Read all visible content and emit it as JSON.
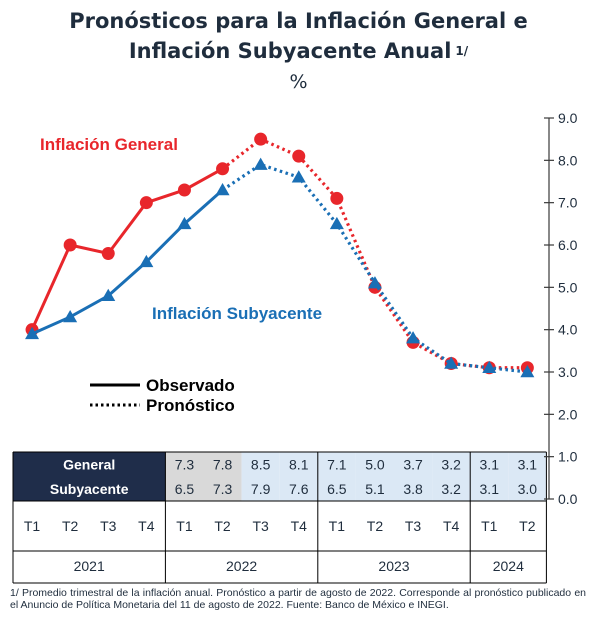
{
  "title": {
    "line1": "Pronósticos para la Inflación General e",
    "line2": "Inflación Subyacente Anual",
    "superscript": "1/",
    "units": "%"
  },
  "chart_data": {
    "type": "line",
    "title": "Pronósticos para la Inflación General e Inflación Subyacente Anual 1/",
    "ylabel": "%",
    "ylim": [
      0.0,
      9.0
    ],
    "yticks": [
      "0.0",
      "1.0",
      "2.0",
      "3.0",
      "4.0",
      "5.0",
      "6.0",
      "7.0",
      "8.0",
      "9.0"
    ],
    "categories": [
      "T1",
      "T2",
      "T3",
      "T4",
      "T1",
      "T2",
      "T3",
      "T4",
      "T1",
      "T2",
      "T3",
      "T4",
      "T1",
      "T2"
    ],
    "years": [
      {
        "label": "2021",
        "span": 4
      },
      {
        "label": "2022",
        "span": 4
      },
      {
        "label": "2023",
        "span": 4
      },
      {
        "label": "2024",
        "span": 2
      }
    ],
    "series": [
      {
        "name": "Inflación General",
        "color": "#e8262b",
        "marker": "circle",
        "values": [
          4.0,
          6.0,
          5.8,
          7.0,
          7.3,
          7.8,
          8.5,
          8.1,
          7.1,
          5.0,
          3.7,
          3.2,
          3.1,
          3.1
        ],
        "observed_until_index": 5
      },
      {
        "name": "Inflación Subyacente",
        "color": "#1a6fb5",
        "marker": "triangle",
        "values": [
          3.9,
          4.3,
          4.8,
          5.6,
          6.5,
          7.3,
          7.9,
          7.6,
          6.5,
          5.1,
          3.8,
          3.2,
          3.1,
          3.0
        ],
        "observed_until_index": 5
      }
    ],
    "legend": {
      "observed": "Observado",
      "forecast": "Pronóstico"
    },
    "table": {
      "row_labels": [
        "General",
        "Subyacente"
      ],
      "start_index": 4,
      "general": [
        "7.3",
        "7.8",
        "8.5",
        "8.1",
        "7.1",
        "5.0",
        "3.7",
        "3.2",
        "3.1",
        "3.1"
      ],
      "subyacente": [
        "6.5",
        "7.3",
        "7.9",
        "7.6",
        "6.5",
        "5.1",
        "3.8",
        "3.2",
        "3.1",
        "3.0"
      ]
    }
  },
  "colors": {
    "general": "#e8262b",
    "subyacente": "#1a6fb5",
    "table_header_bg": "#1f2d4a",
    "table_observed_bg": "#d9d9d9",
    "table_forecast_bg": "#dbe8f5"
  },
  "footnote": "1/ Promedio trimestral de la inflación anual. Pronóstico a partir de agosto de 2022. Corresponde al pronóstico publicado en el Anuncio de Política Monetaria del 11 de agosto de 2022. Fuente: Banco de México e INEGI."
}
